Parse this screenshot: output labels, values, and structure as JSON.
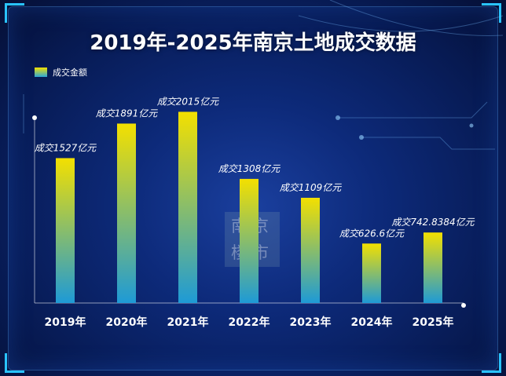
{
  "title": "2019年-2025年南京土地成交数据",
  "watermark": {
    "line1": "南京",
    "line2": "楼市"
  },
  "colors": {
    "bar_top": "#f3e000",
    "bar_bottom": "#1e9ad6",
    "background": "#0d2a7a",
    "text": "#ffffff"
  },
  "chart_data": {
    "type": "bar",
    "title": "2019年-2025年南京土地成交数据",
    "legend": [
      "成交金额"
    ],
    "legend_position": "top-left",
    "categories": [
      "2019年",
      "2020年",
      "2021年",
      "2022年",
      "2023年",
      "2024年",
      "2025年"
    ],
    "series": [
      {
        "name": "成交金额",
        "values": [
          1527,
          1891,
          2015,
          1308,
          1109,
          626.6,
          742.8384
        ]
      }
    ],
    "data_labels": [
      "成交1527亿元",
      "成交1891亿元",
      "成交2015亿元",
      "成交1308亿元",
      "成交1109亿元",
      "成交626.6亿元",
      "成交742.8384亿元"
    ],
    "ylim": [
      0,
      2300
    ],
    "grid": false
  }
}
